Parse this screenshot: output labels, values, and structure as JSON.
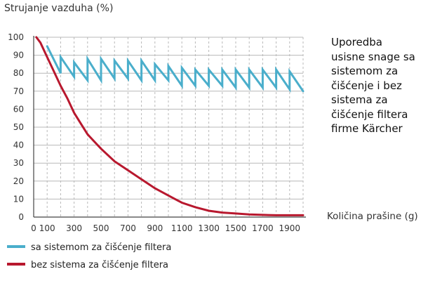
{
  "colors": {
    "grid": "#b8b8b8",
    "axis": "#444444",
    "tick_text": "#333333",
    "series_with": "#4aaecb",
    "series_without": "#b8182e"
  },
  "chart_data": {
    "type": "line",
    "title": "",
    "ylabel": "Strujanje vazduha (%)",
    "xlabel": "Količina prašine (g)",
    "xlim": [
      0,
      2000
    ],
    "ylim": [
      0,
      100
    ],
    "x_ticks": [
      "0",
      "100",
      "300",
      "500",
      "700",
      "900",
      "1100",
      "1300",
      "1500",
      "1700",
      "1900"
    ],
    "y_ticks": [
      "0",
      "10",
      "20",
      "30",
      "40",
      "50",
      "60",
      "70",
      "80",
      "90",
      "100"
    ],
    "grid": true,
    "annotation": [
      "Uporedba",
      "usisne snage sa",
      "sistemom za",
      "čišćenje i bez",
      "sistema za",
      "čišćenje filtera",
      "firme Kärcher"
    ],
    "legend_position": "bottom-left",
    "series": [
      {
        "name": "sa sistemom za čišćenje filtera",
        "color_key": "series_with",
        "points": [
          [
            100,
            95
          ],
          [
            200,
            80
          ],
          [
            200,
            89
          ],
          [
            300,
            78
          ],
          [
            300,
            86
          ],
          [
            400,
            76
          ],
          [
            400,
            88
          ],
          [
            500,
            76
          ],
          [
            500,
            88
          ],
          [
            600,
            77
          ],
          [
            600,
            87
          ],
          [
            700,
            77
          ],
          [
            700,
            87
          ],
          [
            800,
            76
          ],
          [
            800,
            87
          ],
          [
            900,
            76
          ],
          [
            900,
            85
          ],
          [
            1000,
            76
          ],
          [
            1000,
            84
          ],
          [
            1100,
            73
          ],
          [
            1100,
            83
          ],
          [
            1200,
            73
          ],
          [
            1200,
            82
          ],
          [
            1300,
            73
          ],
          [
            1300,
            82
          ],
          [
            1400,
            73
          ],
          [
            1400,
            82
          ],
          [
            1500,
            72
          ],
          [
            1500,
            82
          ],
          [
            1600,
            72
          ],
          [
            1600,
            82
          ],
          [
            1700,
            72
          ],
          [
            1700,
            82
          ],
          [
            1800,
            72
          ],
          [
            1800,
            82
          ],
          [
            1900,
            71
          ],
          [
            1900,
            81
          ],
          [
            2000,
            70
          ]
        ]
      },
      {
        "name": "bez sistema za čišćenje filtera",
        "color_key": "series_without",
        "points": [
          [
            20,
            100
          ],
          [
            50,
            97
          ],
          [
            100,
            89
          ],
          [
            150,
            81
          ],
          [
            200,
            73
          ],
          [
            250,
            66
          ],
          [
            300,
            58
          ],
          [
            350,
            52
          ],
          [
            400,
            46
          ],
          [
            450,
            42
          ],
          [
            500,
            38
          ],
          [
            600,
            31
          ],
          [
            700,
            26
          ],
          [
            800,
            21
          ],
          [
            900,
            16
          ],
          [
            1000,
            12
          ],
          [
            1100,
            8
          ],
          [
            1200,
            5.5
          ],
          [
            1300,
            3.5
          ],
          [
            1400,
            2.5
          ],
          [
            1500,
            2
          ],
          [
            1600,
            1.5
          ],
          [
            1700,
            1.2
          ],
          [
            1800,
            1
          ],
          [
            1900,
            1
          ],
          [
            2000,
            1
          ]
        ]
      }
    ]
  }
}
